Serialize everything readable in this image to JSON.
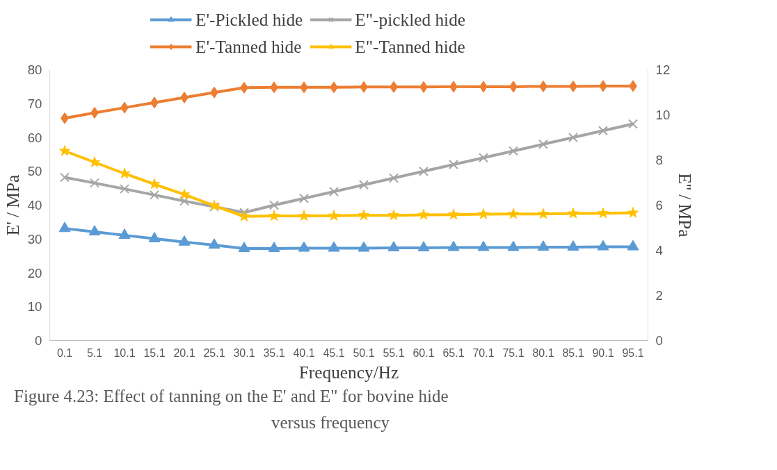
{
  "chart_data": {
    "type": "line",
    "categories": [
      "0.1",
      "5.1",
      "10.1",
      "15.1",
      "20.1",
      "25.1",
      "30.1",
      "35.1",
      "40.1",
      "45.1",
      "50.1",
      "55.1",
      "60.1",
      "65.1",
      "70.1",
      "75.1",
      "80.1",
      "85.1",
      "90.1",
      "95.1"
    ],
    "xlabel": "Frequency/Hz",
    "ylabel": "E' / MPa",
    "y2label": "E'' / MPa",
    "ylim": [
      0,
      80
    ],
    "yticks": [
      0,
      10,
      20,
      30,
      40,
      50,
      60,
      70,
      80
    ],
    "y2lim": [
      0,
      12
    ],
    "y2ticks": [
      0,
      2,
      4,
      6,
      8,
      10,
      12
    ],
    "grid": false,
    "legend": "top",
    "line_style": "solid",
    "series": [
      {
        "name": "E'-Pickled hide",
        "color": "#5b9bd5",
        "marker": "triangle",
        "values": [
          33.1,
          32.1,
          31.1,
          30.1,
          29.1,
          28.2,
          27.2,
          27.2,
          27.3,
          27.3,
          27.3,
          27.4,
          27.4,
          27.5,
          27.5,
          27.5,
          27.6,
          27.6,
          27.7,
          27.7
        ]
      },
      {
        "name": "E'-Tanned hide",
        "color": "#ed7d31",
        "marker": "diamond",
        "values": [
          65.7,
          67.3,
          68.8,
          70.3,
          71.8,
          73.3,
          74.7,
          74.8,
          74.8,
          74.8,
          74.9,
          74.9,
          74.9,
          75.0,
          75.0,
          75.0,
          75.1,
          75.1,
          75.2,
          75.2
        ]
      },
      {
        "name": "E\"-pickled hide",
        "color": "#a5a5a5",
        "marker": "cross",
        "axis": "y2",
        "values": [
          7.23,
          6.98,
          6.72,
          6.45,
          6.18,
          5.93,
          5.67,
          6.0,
          6.3,
          6.6,
          6.9,
          7.2,
          7.5,
          7.8,
          8.1,
          8.4,
          8.7,
          9.0,
          9.3,
          9.6
        ]
      },
      {
        "name": "E\"-Tanned hide",
        "color": "#ffc000",
        "marker": "star",
        "axis": "y2",
        "values": [
          8.4,
          7.9,
          7.4,
          6.93,
          6.47,
          5.97,
          5.5,
          5.52,
          5.52,
          5.53,
          5.55,
          5.55,
          5.57,
          5.58,
          5.6,
          5.61,
          5.61,
          5.63,
          5.64,
          5.66
        ]
      }
    ],
    "annotations": [
      "Figure 4.23: Effect of tanning on the E' and E\" for bovine hide",
      "versus frequency"
    ]
  }
}
